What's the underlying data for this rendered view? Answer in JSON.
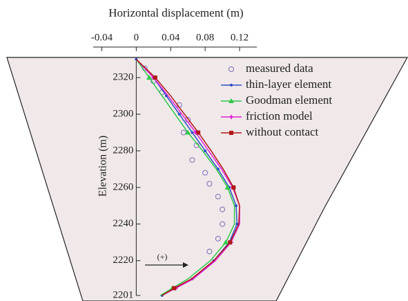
{
  "chart_data": {
    "type": "line",
    "x_label": "Horizontal displacement (m)",
    "y_label": "Elevation (m)",
    "annotation": "(+)",
    "xlim": [
      -0.05,
      0.14
    ],
    "xticks": [
      -0.04,
      0,
      0.04,
      0.08,
      0.12
    ],
    "ylim": [
      2201,
      2331
    ],
    "yticks": [
      2320,
      2300,
      2280,
      2260,
      2240,
      2220,
      2201
    ],
    "legend": "upper right",
    "series": [
      {
        "name": "measured data",
        "color": "#8a7fc0",
        "marker": "circle",
        "line": false,
        "x": [
          0.01,
          0.02,
          0.03,
          0.05,
          0.06,
          0.055,
          0.07,
          0.065,
          0.08,
          0.085,
          0.095,
          0.1,
          0.1,
          0.095,
          0.085
        ],
        "values": [
          2325,
          2318,
          2312,
          2305,
          2297,
          2290,
          2283,
          2275,
          2268,
          2262,
          2255,
          2248,
          2240,
          2232,
          2225
        ]
      },
      {
        "name": "thin-layer element",
        "color": "#2b4fc4",
        "marker": "dot",
        "line": true,
        "x": [
          0,
          0.02,
          0.035,
          0.05,
          0.065,
          0.08,
          0.095,
          0.108,
          0.116,
          0.117,
          0.108,
          0.09,
          0.065,
          0.045,
          0.03
        ],
        "values": [
          2330,
          2320,
          2310,
          2300,
          2290,
          2280,
          2270,
          2260,
          2250,
          2240,
          2230,
          2220,
          2210,
          2205,
          2201
        ]
      },
      {
        "name": "Goodman element",
        "color": "#2ec84a",
        "marker": "triangle",
        "line": true,
        "x": [
          0,
          0.015,
          0.03,
          0.045,
          0.06,
          0.077,
          0.093,
          0.106,
          0.114,
          0.114,
          0.104,
          0.086,
          0.06,
          0.042,
          0.028
        ],
        "values": [
          2330,
          2320,
          2310,
          2300,
          2290,
          2280,
          2270,
          2260,
          2250,
          2240,
          2230,
          2220,
          2210,
          2205,
          2201
        ]
      },
      {
        "name": "friction model",
        "color": "#e020d8",
        "marker": "star",
        "line": true,
        "x": [
          0,
          0.02,
          0.037,
          0.053,
          0.069,
          0.084,
          0.099,
          0.112,
          0.12,
          0.12,
          0.11,
          0.092,
          0.066,
          0.046,
          0.03
        ],
        "values": [
          2330,
          2320,
          2310,
          2300,
          2290,
          2280,
          2270,
          2260,
          2250,
          2240,
          2230,
          2220,
          2210,
          2205,
          2201
        ]
      },
      {
        "name": "without contact",
        "color": "#b01818",
        "marker": "square",
        "line": true,
        "x": [
          0,
          0.022,
          0.04,
          0.056,
          0.072,
          0.087,
          0.101,
          0.113,
          0.12,
          0.119,
          0.109,
          0.09,
          0.064,
          0.044,
          0.03
        ],
        "values": [
          2330,
          2320,
          2310,
          2300,
          2290,
          2280,
          2270,
          2260,
          2250,
          2240,
          2230,
          2220,
          2210,
          2205,
          2201
        ]
      }
    ]
  }
}
